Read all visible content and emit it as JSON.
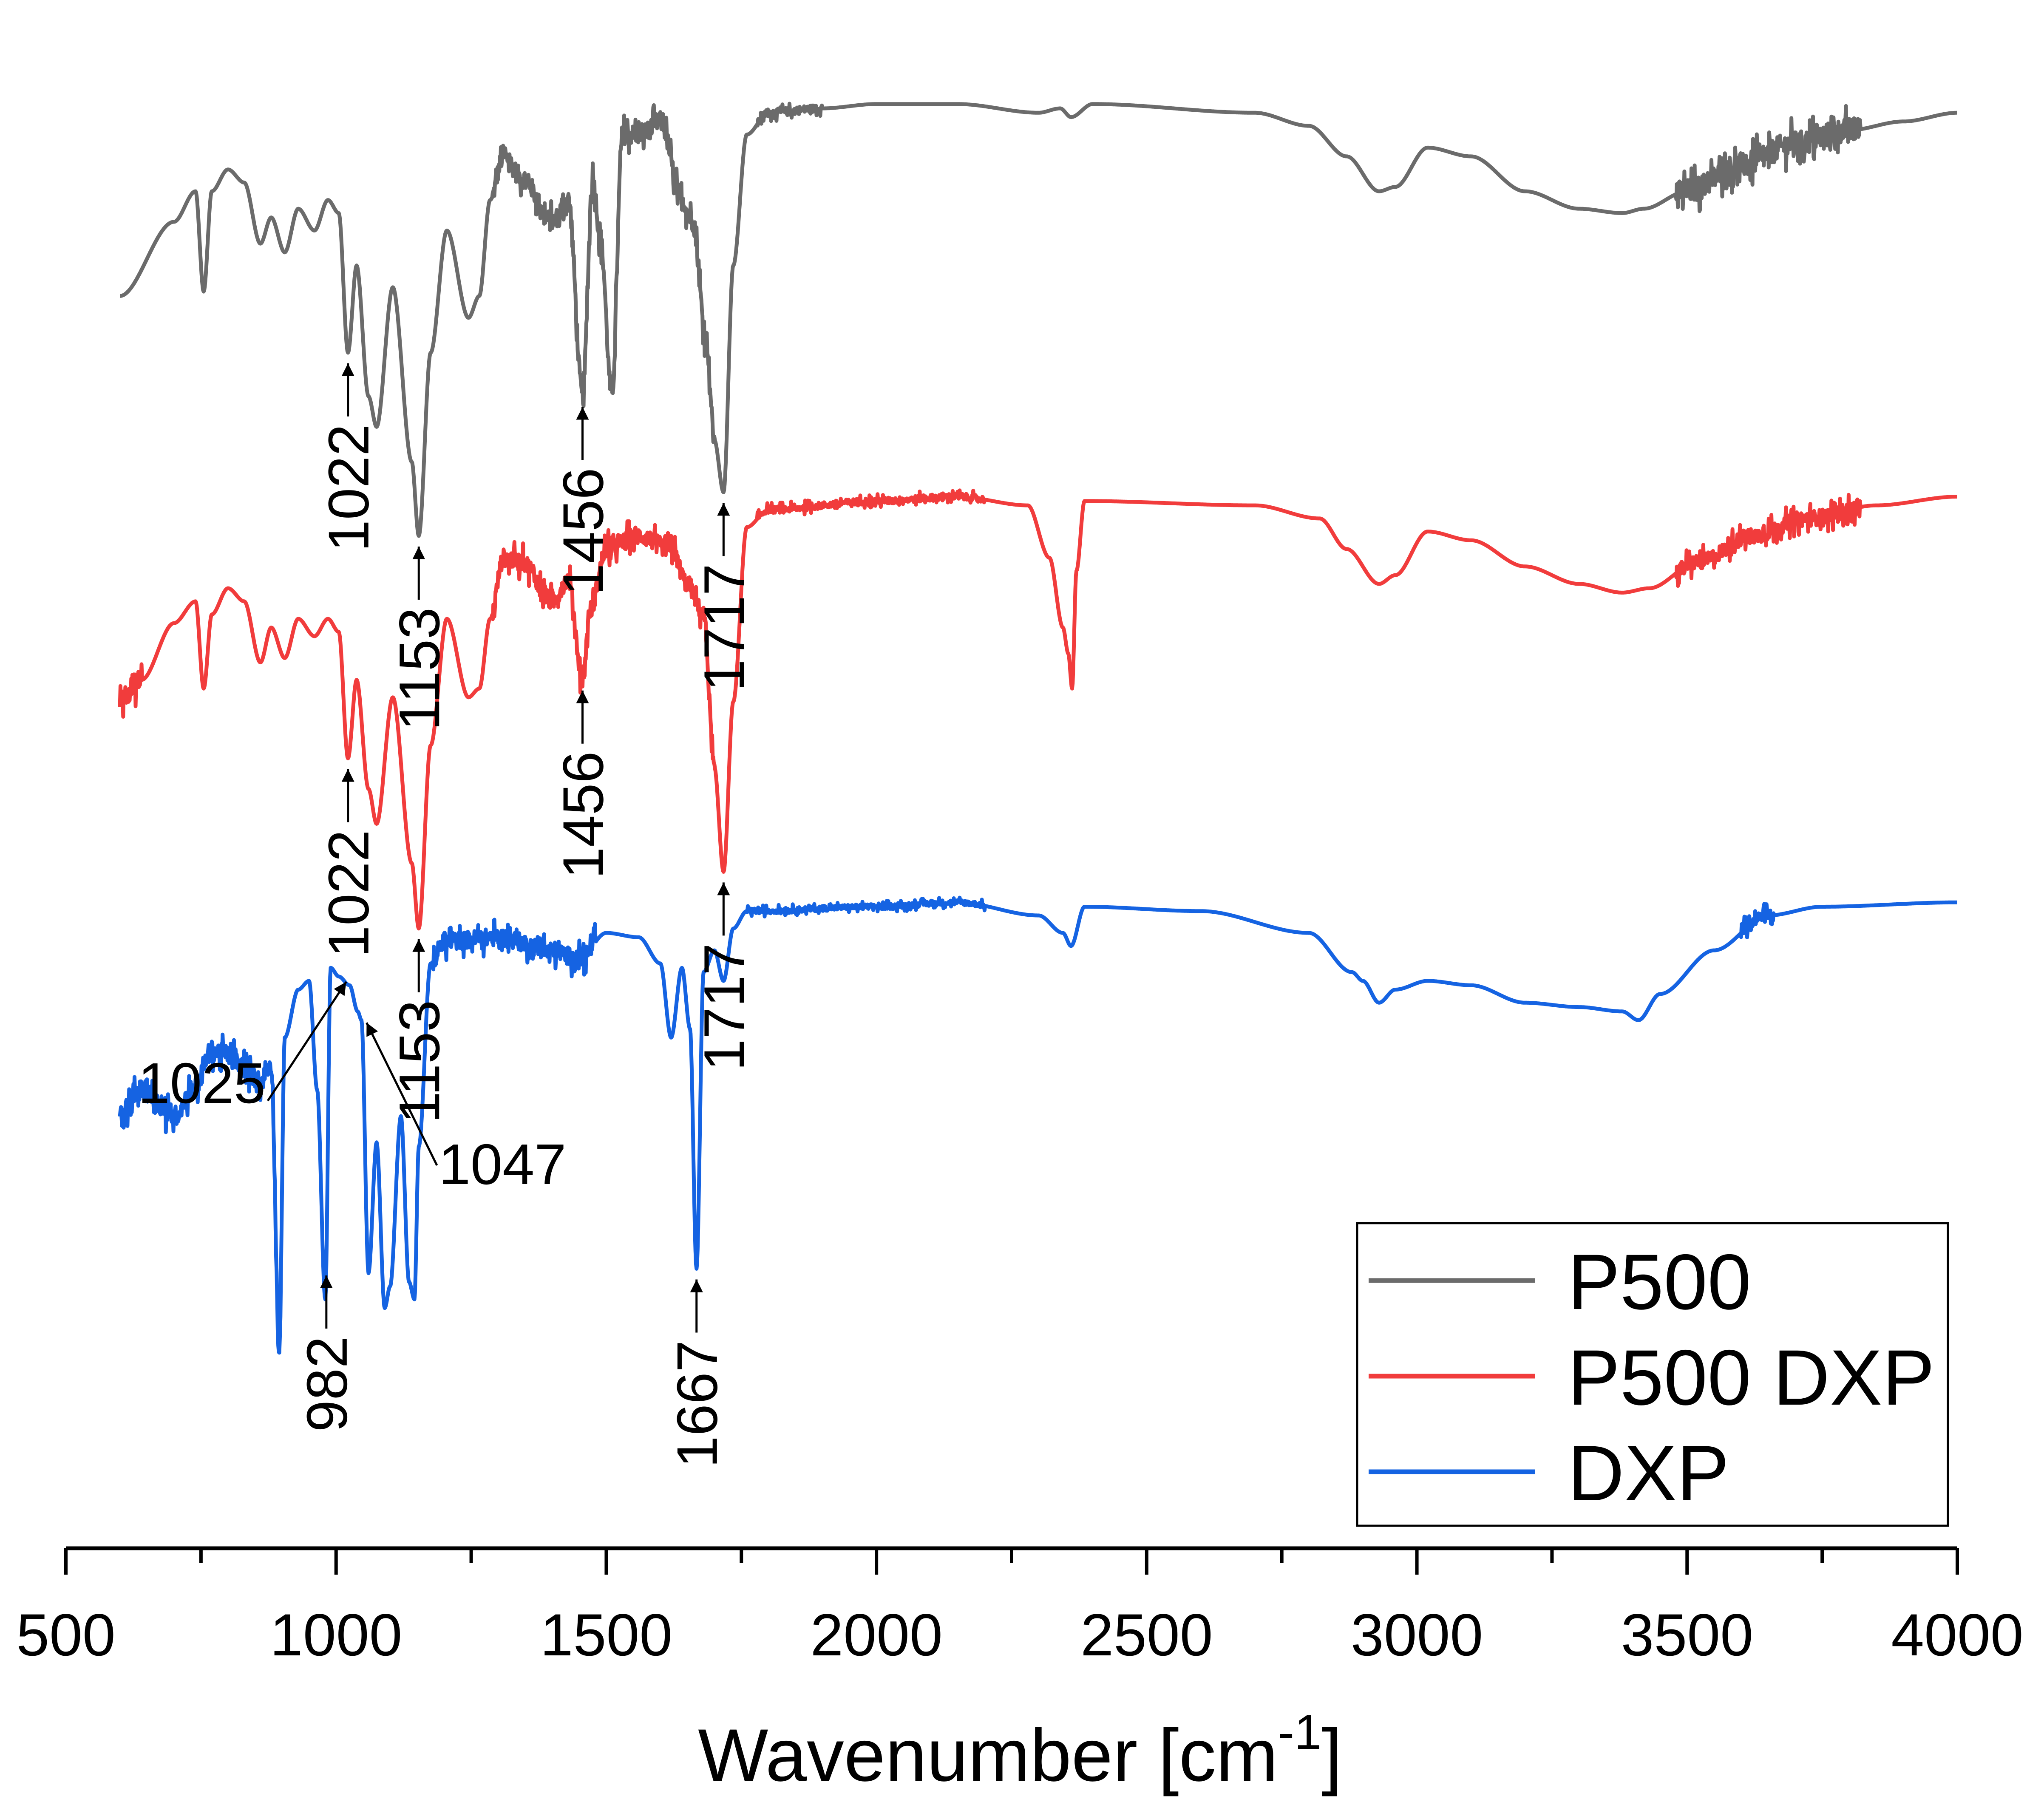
{
  "chart_data": {
    "type": "line",
    "title": "",
    "xlabel": "Wavenumber [cm",
    "xlabel_sup": "-1",
    "xlabel_end": "]",
    "ylabel": "",
    "xlim": [
      500,
      4000
    ],
    "x_ticks": [
      "500",
      "1000",
      "1500",
      "2000",
      "2500",
      "3000",
      "3500",
      "4000"
    ],
    "x_tick_values": [
      500,
      1000,
      1500,
      2000,
      2500,
      3000,
      3500,
      4000
    ],
    "grid": false,
    "y_axis_visible": false,
    "legend_position": "bottom-right",
    "ylim": [
      0,
      34
    ],
    "series": [
      {
        "name": "P500",
        "color": "#6b6b6b",
        "baseline": 32.2,
        "points": [
          [
            600,
            27.8
          ],
          [
            700,
            29.5
          ],
          [
            740,
            30.2
          ],
          [
            755,
            27.9
          ],
          [
            770,
            30.2
          ],
          [
            800,
            30.7
          ],
          [
            830,
            30.4
          ],
          [
            860,
            29.0
          ],
          [
            880,
            29.6
          ],
          [
            905,
            28.8
          ],
          [
            930,
            29.8
          ],
          [
            960,
            29.3
          ],
          [
            985,
            30.0
          ],
          [
            1005,
            29.7
          ],
          [
            1022,
            26.5
          ],
          [
            1038,
            28.5
          ],
          [
            1060,
            25.5
          ],
          [
            1075,
            24.8
          ],
          [
            1105,
            28.0
          ],
          [
            1140,
            24.0
          ],
          [
            1153,
            22.3
          ],
          [
            1175,
            26.5
          ],
          [
            1205,
            29.3
          ],
          [
            1245,
            27.3
          ],
          [
            1265,
            27.8
          ],
          [
            1285,
            30.0
          ],
          [
            1310,
            31.0
          ],
          [
            1345,
            30.5
          ],
          [
            1400,
            29.5
          ],
          [
            1430,
            30.0
          ],
          [
            1456,
            25.5
          ],
          [
            1475,
            30.5
          ],
          [
            1490,
            29.0
          ],
          [
            1510,
            25.5
          ],
          [
            1530,
            31.5
          ],
          [
            1565,
            31.5
          ],
          [
            1600,
            31.8
          ],
          [
            1640,
            30.0
          ],
          [
            1660,
            29.5
          ],
          [
            1685,
            26.8
          ],
          [
            1700,
            24.5
          ],
          [
            1717,
            23.3
          ],
          [
            1735,
            28.5
          ],
          [
            1760,
            31.5
          ],
          [
            1800,
            32.0
          ],
          [
            1900,
            32.1
          ],
          [
            2000,
            32.2
          ],
          [
            2150,
            32.2
          ],
          [
            2300,
            32.0
          ],
          [
            2340,
            32.1
          ],
          [
            2360,
            31.9
          ],
          [
            2400,
            32.2
          ],
          [
            2700,
            32.0
          ],
          [
            2800,
            31.7
          ],
          [
            2870,
            31.0
          ],
          [
            2930,
            30.2
          ],
          [
            2960,
            30.3
          ],
          [
            3020,
            31.2
          ],
          [
            3100,
            31.0
          ],
          [
            3200,
            30.2
          ],
          [
            3300,
            29.8
          ],
          [
            3380,
            29.7
          ],
          [
            3420,
            29.8
          ],
          [
            3500,
            30.2
          ],
          [
            3600,
            30.8
          ],
          [
            3700,
            31.3
          ],
          [
            3800,
            31.6
          ],
          [
            3900,
            31.8
          ],
          [
            4000,
            32.0
          ]
        ],
        "noise": [
          [
            1290,
            1700,
            0.45
          ],
          [
            1780,
            1900,
            0.18
          ],
          [
            3480,
            3820,
            0.55
          ]
        ]
      },
      {
        "name": "P500 DXP",
        "color": "#f13c3c",
        "baseline": 23.2,
        "points": [
          [
            600,
            18.6
          ],
          [
            640,
            19.0
          ],
          [
            700,
            20.3
          ],
          [
            740,
            20.8
          ],
          [
            755,
            18.8
          ],
          [
            770,
            20.5
          ],
          [
            800,
            21.1
          ],
          [
            830,
            20.8
          ],
          [
            860,
            19.4
          ],
          [
            880,
            20.2
          ],
          [
            905,
            19.5
          ],
          [
            930,
            20.4
          ],
          [
            960,
            20.0
          ],
          [
            985,
            20.4
          ],
          [
            1005,
            20.1
          ],
          [
            1022,
            17.2
          ],
          [
            1038,
            19.0
          ],
          [
            1060,
            16.5
          ],
          [
            1075,
            15.7
          ],
          [
            1105,
            18.6
          ],
          [
            1140,
            14.8
          ],
          [
            1153,
            13.3
          ],
          [
            1175,
            17.5
          ],
          [
            1205,
            20.4
          ],
          [
            1245,
            18.6
          ],
          [
            1265,
            18.8
          ],
          [
            1285,
            20.4
          ],
          [
            1310,
            21.8
          ],
          [
            1345,
            21.7
          ],
          [
            1400,
            20.8
          ],
          [
            1430,
            21.3
          ],
          [
            1456,
            19.0
          ],
          [
            1470,
            20.6
          ],
          [
            1500,
            22.0
          ],
          [
            1560,
            22.3
          ],
          [
            1620,
            22.0
          ],
          [
            1650,
            21.2
          ],
          [
            1680,
            20.5
          ],
          [
            1700,
            17.0
          ],
          [
            1717,
            14.6
          ],
          [
            1735,
            18.5
          ],
          [
            1760,
            22.5
          ],
          [
            1800,
            22.9
          ],
          [
            2000,
            23.1
          ],
          [
            2150,
            23.2
          ],
          [
            2280,
            23.0
          ],
          [
            2320,
            21.8
          ],
          [
            2345,
            20.2
          ],
          [
            2355,
            19.6
          ],
          [
            2362,
            18.8
          ],
          [
            2370,
            21.5
          ],
          [
            2385,
            23.1
          ],
          [
            2700,
            23.0
          ],
          [
            2820,
            22.7
          ],
          [
            2870,
            22.0
          ],
          [
            2930,
            21.2
          ],
          [
            2960,
            21.4
          ],
          [
            3020,
            22.4
          ],
          [
            3100,
            22.2
          ],
          [
            3200,
            21.6
          ],
          [
            3300,
            21.2
          ],
          [
            3380,
            21.0
          ],
          [
            3430,
            21.1
          ],
          [
            3520,
            21.7
          ],
          [
            3620,
            22.3
          ],
          [
            3720,
            22.7
          ],
          [
            3850,
            23.0
          ],
          [
            4000,
            23.2
          ]
        ],
        "noise": [
          [
            600,
            640,
            0.5
          ],
          [
            1290,
            1700,
            0.4
          ],
          [
            1780,
            2200,
            0.15
          ],
          [
            3480,
            3820,
            0.35
          ]
        ]
      },
      {
        "name": "DXP",
        "color": "#1563e2",
        "baseline": 13.9,
        "points": [
          [
            600,
            8.9
          ],
          [
            640,
            9.6
          ],
          [
            700,
            9.0
          ],
          [
            740,
            9.7
          ],
          [
            770,
            10.5
          ],
          [
            800,
            10.4
          ],
          [
            830,
            10.1
          ],
          [
            860,
            9.8
          ],
          [
            880,
            10.2
          ],
          [
            895,
            3.6
          ],
          [
            905,
            10.8
          ],
          [
            930,
            11.9
          ],
          [
            950,
            12.1
          ],
          [
            965,
            9.6
          ],
          [
            980,
            4.8
          ],
          [
            990,
            12.4
          ],
          [
            1005,
            12.2
          ],
          [
            1025,
            12.0
          ],
          [
            1040,
            11.4
          ],
          [
            1047,
            11.2
          ],
          [
            1060,
            5.4
          ],
          [
            1075,
            8.4
          ],
          [
            1090,
            4.6
          ],
          [
            1100,
            5.1
          ],
          [
            1120,
            9.0
          ],
          [
            1135,
            5.2
          ],
          [
            1145,
            4.8
          ],
          [
            1153,
            8.3
          ],
          [
            1175,
            12.5
          ],
          [
            1200,
            13.0
          ],
          [
            1300,
            13.1
          ],
          [
            1400,
            12.8
          ],
          [
            1450,
            12.6
          ],
          [
            1500,
            13.2
          ],
          [
            1560,
            13.1
          ],
          [
            1600,
            12.5
          ],
          [
            1620,
            10.8
          ],
          [
            1640,
            12.4
          ],
          [
            1655,
            11.0
          ],
          [
            1667,
            5.5
          ],
          [
            1680,
            12.3
          ],
          [
            1700,
            12.8
          ],
          [
            1717,
            12.1
          ],
          [
            1735,
            13.3
          ],
          [
            1760,
            13.7
          ],
          [
            2000,
            13.8
          ],
          [
            2150,
            13.9
          ],
          [
            2300,
            13.6
          ],
          [
            2345,
            13.2
          ],
          [
            2360,
            12.9
          ],
          [
            2385,
            13.8
          ],
          [
            2600,
            13.7
          ],
          [
            2800,
            13.2
          ],
          [
            2880,
            12.3
          ],
          [
            2900,
            12.1
          ],
          [
            2930,
            11.6
          ],
          [
            2960,
            11.9
          ],
          [
            3020,
            12.1
          ],
          [
            3100,
            12.0
          ],
          [
            3200,
            11.6
          ],
          [
            3300,
            11.5
          ],
          [
            3380,
            11.4
          ],
          [
            3410,
            11.2
          ],
          [
            3450,
            11.8
          ],
          [
            3550,
            12.8
          ],
          [
            3650,
            13.6
          ],
          [
            3750,
            13.8
          ],
          [
            4000,
            13.9
          ]
        ],
        "noise": [
          [
            600,
            900,
            0.45
          ],
          [
            1180,
            1480,
            0.4
          ],
          [
            1760,
            2200,
            0.12
          ],
          [
            3600,
            3660,
            0.3
          ]
        ]
      }
    ],
    "annotations": [
      {
        "label": "1022",
        "x": 1022,
        "series": "P500",
        "style": "vertical"
      },
      {
        "label": "1153",
        "x": 1153,
        "series": "P500",
        "style": "vertical"
      },
      {
        "label": "1456",
        "x": 1456,
        "series": "P500",
        "style": "vertical"
      },
      {
        "label": "1717",
        "x": 1717,
        "series": "P500",
        "style": "vertical"
      },
      {
        "label": "1022",
        "x": 1022,
        "series": "P500 DXP",
        "style": "vertical"
      },
      {
        "label": "1153",
        "x": 1153,
        "series": "P500 DXP",
        "style": "vertical"
      },
      {
        "label": "1456",
        "x": 1456,
        "series": "P500 DXP",
        "style": "vertical"
      },
      {
        "label": "1717",
        "x": 1717,
        "series": "P500 DXP",
        "style": "vertical"
      },
      {
        "label": "982",
        "x": 982,
        "series": "DXP",
        "style": "vertical"
      },
      {
        "label": "1667",
        "x": 1667,
        "series": "DXP",
        "style": "vertical"
      },
      {
        "label": "1025",
        "x": 1025,
        "series": "DXP",
        "style": "left"
      },
      {
        "label": "1047",
        "x": 1047,
        "series": "DXP",
        "style": "right"
      }
    ]
  }
}
